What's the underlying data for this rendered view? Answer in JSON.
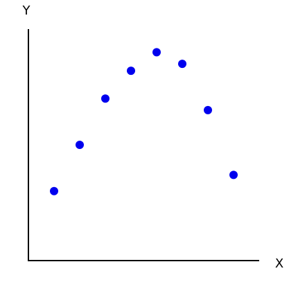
{
  "chart_data": {
    "type": "scatter",
    "title": "",
    "xlabel": "X",
    "ylabel": "Y",
    "x": [
      1,
      2,
      3,
      4,
      5,
      6,
      7,
      8
    ],
    "y": [
      3,
      5,
      7,
      8.2,
      9,
      8.5,
      6.5,
      3.7
    ],
    "xlim": [
      0,
      9
    ],
    "ylim": [
      0,
      10
    ],
    "grid": false,
    "legend": "none",
    "point_color": "#0000ee",
    "axis_color": "#000000"
  }
}
